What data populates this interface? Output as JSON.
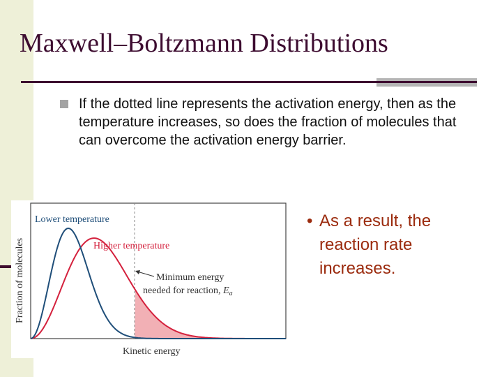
{
  "slide": {
    "title": "Maxwell–Boltzmann Distributions",
    "bullet": "If the dotted line represents the activation energy, then as the temperature increases, so does the fraction of molecules that can overcome the activation energy barrier.",
    "sub_bullet_marker": "•",
    "sub_bullet": "As a result, the reaction rate increases.",
    "colors": {
      "title": "#3d0c30",
      "sub_bullet": "#9b2b0e",
      "left_strip": "#eef0d8"
    }
  },
  "figure": {
    "y_axis_label": "Fraction of molecules",
    "x_axis_label": "Kinetic energy",
    "lower_label": "Lower temperature",
    "higher_label": "Higher temperature",
    "threshold_label_line1": "Minimum energy",
    "threshold_label_line2": "needed for reaction, ",
    "threshold_symbol": "E",
    "threshold_subscript": "a",
    "colors": {
      "lower_curve": "#1f4e79",
      "higher_curve": "#d4213d",
      "lower_fill": "#8eaed4",
      "higher_fill": "#f2b0b5",
      "frame": "#444444",
      "threshold_line": "#888888",
      "label_text": "#333333"
    }
  }
}
